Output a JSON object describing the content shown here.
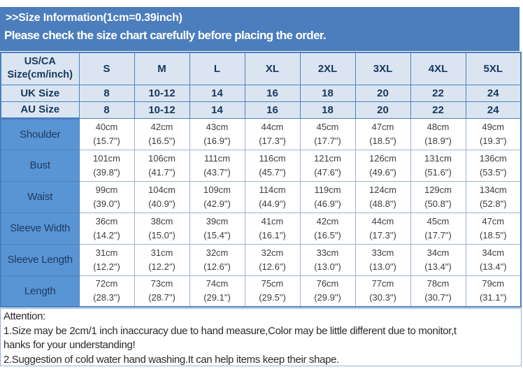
{
  "banner": {
    "title": ">>Size Information(1cm=0.39inch)",
    "subtitle": "Please check the size chart carefully before placing the order."
  },
  "table": {
    "corner": {
      "line1": "US/CA",
      "line2": "Size(cm/inch)"
    },
    "sizes": [
      "S",
      "M",
      "L",
      "XL",
      "2XL",
      "3XL",
      "4XL",
      "5XL"
    ],
    "rows_plain": [
      {
        "label": "UK Size",
        "values": [
          "8",
          "10-12",
          "14",
          "16",
          "18",
          "20",
          "22",
          "24"
        ]
      },
      {
        "label": "AU Size",
        "values": [
          "8",
          "10-12",
          "14",
          "16",
          "18",
          "20",
          "22",
          "24"
        ]
      }
    ],
    "rows_measure": [
      {
        "label": "Shoulder",
        "cm": [
          "40cm",
          "42cm",
          "43cm",
          "44cm",
          "45cm",
          "47cm",
          "48cm",
          "49cm"
        ],
        "inch": [
          "(15.7\")",
          "(16.5\")",
          "(16.9\")",
          "(17.3\")",
          "(17.7\")",
          "(18.5\")",
          "(18.9\")",
          "(19.3\")"
        ]
      },
      {
        "label": "Bust",
        "cm": [
          "101cm",
          "106cm",
          "111cm",
          "116cm",
          "121cm",
          "126cm",
          "131cm",
          "136cm"
        ],
        "inch": [
          "(39.8\")",
          "(41.7\")",
          "(43.7\")",
          "(45.7\")",
          "(47.6\")",
          "(49.6\")",
          "(51.6\")",
          "(53.5\")"
        ]
      },
      {
        "label": "Waist",
        "cm": [
          "99cm",
          "104cm",
          "109cm",
          "114cm",
          "119cm",
          "124cm",
          "129cm",
          "134cm"
        ],
        "inch": [
          "(39.0\")",
          "(40.9\")",
          "(42.9\")",
          "(44.9\")",
          "(46.9\")",
          "(48.8\")",
          "(50.8\")",
          "(52.8\")"
        ]
      },
      {
        "label": "Sleeve Width",
        "cm": [
          "36cm",
          "38cm",
          "39cm",
          "41cm",
          "42cm",
          "44cm",
          "45cm",
          "47cm"
        ],
        "inch": [
          "(14.2\")",
          "(15.0\")",
          "(15.4\")",
          "(16.1\")",
          "(16.5\")",
          "(17.3\")",
          "(17.7\")",
          "(18.5\")"
        ]
      },
      {
        "label": "Sleeve Length",
        "cm": [
          "31cm",
          "31cm",
          "32cm",
          "32cm",
          "33cm",
          "33cm",
          "34cm",
          "34cm"
        ],
        "inch": [
          "(12.2\")",
          "(12.2\")",
          "(12.6\")",
          "(12.6\")",
          "(13.0\")",
          "(13.0\")",
          "(13.4\")",
          "(13.4\")"
        ]
      },
      {
        "label": "Length",
        "cm": [
          "72cm",
          "73cm",
          "74cm",
          "75cm",
          "76cm",
          "77cm",
          "78cm",
          "79cm"
        ],
        "inch": [
          "(28.3\")",
          "(28.7\")",
          "(29.1\")",
          "(29.5\")",
          "(29.9\")",
          "(30.3\")",
          "(30.7\")",
          "(31.1\")"
        ]
      }
    ]
  },
  "attention": {
    "lines": [
      "Attention:",
      "1.Size may be 2cm/1 inch inaccuracy due to hand measure,Color may be little different due to monitor,t",
      "hanks for your understanding!",
      "2.Suggestion of cold water hand washing.It can help items keep their shape."
    ]
  },
  "colors": {
    "banner_bg": "#4c7dbc",
    "header_bg": "#dbe5f1",
    "label_bg": "#5995d4",
    "grid_dark": "#4f81bd",
    "grid_light": "#9db4d3",
    "navy_text": "#17375e",
    "attention_border": "#95b3d7"
  }
}
